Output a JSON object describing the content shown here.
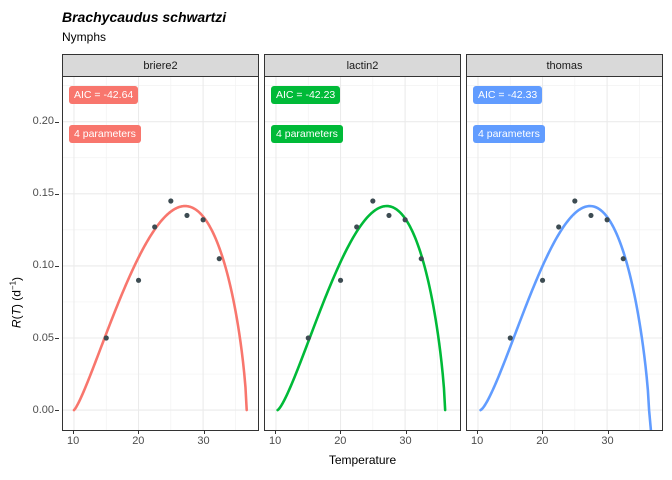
{
  "header": {
    "title": "Brachycaudus schwartzi",
    "subtitle": "Nymphs"
  },
  "axes": {
    "x_label": "Temperature",
    "y_label_parts": [
      "R",
      "(",
      "T",
      ") (d",
      "−1",
      ")"
    ]
  },
  "chart_data": {
    "type": "line",
    "title": "Brachycaudus schwartzi",
    "subtitle": "Nymphs",
    "xlabel": "Temperature",
    "ylabel": "R(T) (d^-1)",
    "facet_variable": "model",
    "xlim": [
      8.3,
      38.5
    ],
    "ylim": [
      -0.0138,
      0.231
    ],
    "x_major_ticks": [
      10,
      20,
      30
    ],
    "x_minor_gridlines": [
      15,
      25,
      35
    ],
    "y_major_ticks": [
      0,
      0.05,
      0.1,
      0.15,
      0.2
    ],
    "y_tick_labels": [
      "0.00",
      "0.05",
      "0.10",
      "0.15",
      "0.20"
    ],
    "y_minor_gridlines": [
      0.025,
      0.075,
      0.125,
      0.175,
      0.225
    ],
    "grid": "on",
    "legend": "none",
    "observed_points": {
      "x": [
        15,
        20,
        22.5,
        25,
        27.5,
        30,
        32.5
      ],
      "y": [
        0.05,
        0.09,
        0.127,
        0.145,
        0.135,
        0.132,
        0.105
      ]
    },
    "point_color": "#3d4c52",
    "facets": [
      {
        "model": "briere2",
        "aic_label": "AIC = -42.64",
        "params_label": "4 parameters",
        "color": "#F8766D",
        "curve": {
          "tmin": 10.0,
          "tpeak": 27.2,
          "tmax": 36.75,
          "rmax": 0.1415,
          "shape": 0.7
        }
      },
      {
        "model": "lactin2",
        "aic_label": "AIC = -42.23",
        "params_label": "4 parameters",
        "color": "#00BA38",
        "curve": {
          "tmin": 10.25,
          "tpeak": 27.15,
          "tmax": 36.2,
          "rmax": 0.1415,
          "shape": 0.72
        }
      },
      {
        "model": "thomas",
        "aic_label": "AIC = -42.33",
        "params_label": "4 parameters",
        "color": "#619CFF",
        "curve": {
          "tmin": 10.4,
          "tpeak": 27.35,
          "tmax": 36.5,
          "rmax": 0.1415,
          "shape": 0.75
        },
        "curve_tail": {
          "t": 36.78,
          "r": -0.0138
        }
      }
    ]
  }
}
